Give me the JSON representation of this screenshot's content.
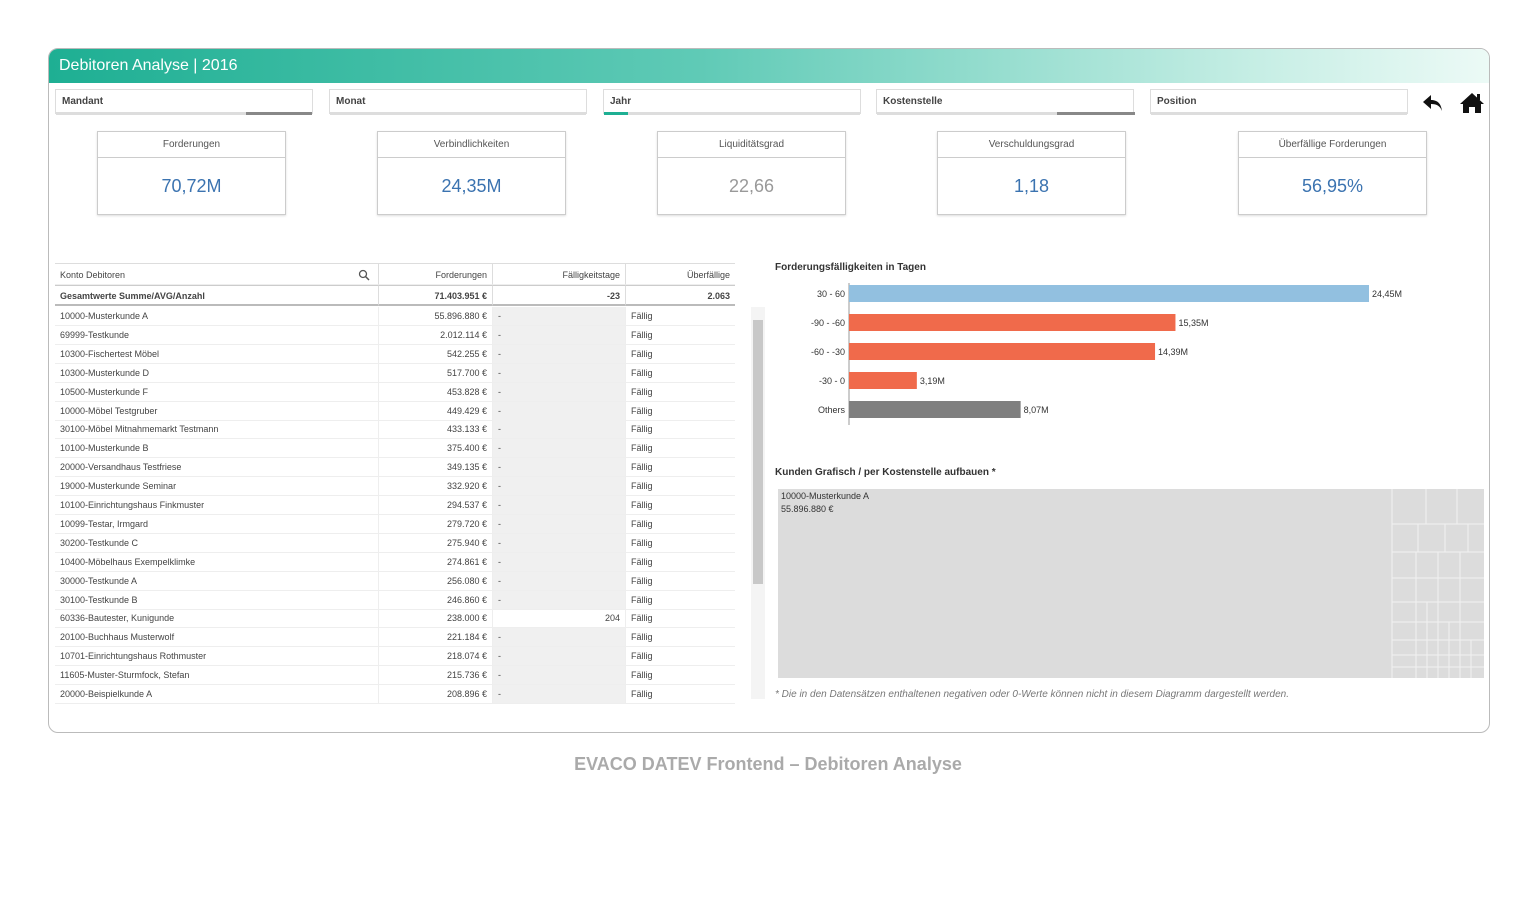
{
  "header": {
    "title": "Debitoren Analyse | 2016"
  },
  "filters": [
    "Mandant",
    "Monat",
    "Jahr",
    "Kostenstelle",
    "Position"
  ],
  "kpis": [
    {
      "title": "Forderungen",
      "value": "70,72M"
    },
    {
      "title": "Verbindlichkeiten",
      "value": "24,35M"
    },
    {
      "title": "Liquiditätsgrad",
      "value": "22,66"
    },
    {
      "title": "Verschuldungsgrad",
      "value": "1,18"
    },
    {
      "title": "Überfällige Forderungen",
      "value": "56,95%"
    }
  ],
  "table": {
    "columns": [
      "Konto Debitoren",
      "Forderungen",
      "Fälligkeitstage",
      "Überfällige"
    ],
    "total": [
      "Gesamtwerte Summe/AVG/Anzahl",
      "71.403.951 €",
      "-23",
      "2.063"
    ],
    "rows": [
      [
        "10000-Musterkunde A",
        "55.896.880 €",
        "-",
        "Fällig"
      ],
      [
        "69999-Testkunde",
        "2.012.114 €",
        "-",
        "Fällig"
      ],
      [
        "10300-Fischertest Möbel",
        "542.255 €",
        "-",
        "Fällig"
      ],
      [
        "10300-Musterkunde D",
        "517.700 €",
        "-",
        "Fällig"
      ],
      [
        "10500-Musterkunde F",
        "453.828 €",
        "-",
        "Fällig"
      ],
      [
        "10000-Möbel Testgruber",
        "449.429 €",
        "-",
        "Fällig"
      ],
      [
        "30100-Möbel Mitnahmemarkt Testmann",
        "433.133 €",
        "-",
        "Fällig"
      ],
      [
        "10100-Musterkunde B",
        "375.400 €",
        "-",
        "Fällig"
      ],
      [
        "20000-Versandhaus Testfriese",
        "349.135 €",
        "-",
        "Fällig"
      ],
      [
        "19000-Musterkunde Seminar",
        "332.920 €",
        "-",
        "Fällig"
      ],
      [
        "10100-Einrichtungshaus Finkmuster",
        "294.537 €",
        "-",
        "Fällig"
      ],
      [
        "10099-Testar, Irmgard",
        "279.720 €",
        "-",
        "Fällig"
      ],
      [
        "30200-Testkunde C",
        "275.940 €",
        "-",
        "Fällig"
      ],
      [
        "10400-Möbelhaus Exempelklimke",
        "274.861 €",
        "-",
        "Fällig"
      ],
      [
        "30000-Testkunde A",
        "256.080 €",
        "-",
        "Fällig"
      ],
      [
        "30100-Testkunde B",
        "246.860 €",
        "-",
        "Fällig"
      ],
      [
        "60336-Bautester, Kunigunde",
        "238.000 €",
        "204",
        "Fällig"
      ],
      [
        "20100-Buchhaus Musterwolf",
        "221.184 €",
        "-",
        "Fällig"
      ],
      [
        "10701-Einrichtungshaus Rothmuster",
        "218.074 €",
        "-",
        "Fällig"
      ],
      [
        "11605-Muster-Sturmfock, Stefan",
        "215.736 €",
        "-",
        "Fällig"
      ],
      [
        "20000-Beispielkunde A",
        "208.896 €",
        "-",
        "Fällig"
      ]
    ]
  },
  "chart": {
    "type": "bar",
    "orientation": "horizontal",
    "title": "Forderungsfälligkeiten in Tagen",
    "categories": [
      "30  -  60",
      "-90  -  -60",
      "-60  -  -30",
      "-30  -  0",
      "Others"
    ],
    "values": [
      24.45,
      15.35,
      14.39,
      3.19,
      8.07
    ],
    "value_labels": [
      "24,45M",
      "15,35M",
      "14,39M",
      "3,19M",
      "8,07M"
    ],
    "colors": [
      "#92c0e0",
      "#f06a4b",
      "#f06a4b",
      "#f06a4b",
      "#7f7f7f"
    ]
  },
  "treemap": {
    "title": "Kunden Grafisch / per Kostenstelle aufbauen *",
    "label": "10000-Musterkunde A",
    "value": "55.896.880 €",
    "note": "* Die in den Datensätzen enthaltenen negativen oder 0-Werte können nicht in diesem Diagramm dargestellt werden."
  },
  "caption": "EVACO DATEV Frontend – Debitoren Analyse"
}
